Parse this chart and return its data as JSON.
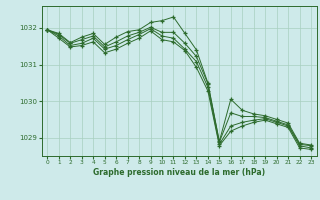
{
  "title": "Graphe pression niveau de la mer (hPa)",
  "background_color": "#ceeaea",
  "grid_color": "#a8cfc0",
  "line_color": "#2d6b2d",
  "xlim": [
    -0.5,
    23.5
  ],
  "ylim": [
    1028.5,
    1032.6
  ],
  "yticks": [
    1029,
    1030,
    1031,
    1032
  ],
  "xticks": [
    0,
    1,
    2,
    3,
    4,
    5,
    6,
    7,
    8,
    9,
    10,
    11,
    12,
    13,
    14,
    15,
    16,
    17,
    18,
    19,
    20,
    21,
    22,
    23
  ],
  "series": [
    [
      1031.95,
      1031.85,
      1031.6,
      1031.75,
      1031.85,
      1031.55,
      1031.75,
      1031.9,
      1031.95,
      1032.15,
      1032.2,
      1032.3,
      1031.85,
      1031.4,
      1030.5,
      1028.9,
      1030.05,
      1029.75,
      1029.65,
      1029.6,
      1029.5,
      1029.4,
      1028.85,
      1028.8
    ],
    [
      1031.95,
      1031.82,
      1031.58,
      1031.68,
      1031.78,
      1031.48,
      1031.62,
      1031.78,
      1031.88,
      1032.02,
      1031.88,
      1031.88,
      1031.58,
      1031.22,
      1030.48,
      1028.88,
      1029.68,
      1029.58,
      1029.58,
      1029.55,
      1029.45,
      1029.35,
      1028.82,
      1028.78
    ],
    [
      1031.95,
      1031.78,
      1031.52,
      1031.58,
      1031.72,
      1031.42,
      1031.52,
      1031.68,
      1031.82,
      1031.98,
      1031.78,
      1031.72,
      1031.42,
      1031.08,
      1030.38,
      1028.82,
      1029.32,
      1029.42,
      1029.48,
      1029.52,
      1029.42,
      1029.32,
      1028.78,
      1028.72
    ],
    [
      1031.95,
      1031.72,
      1031.48,
      1031.52,
      1031.62,
      1031.32,
      1031.42,
      1031.58,
      1031.72,
      1031.92,
      1031.68,
      1031.62,
      1031.38,
      1030.92,
      1030.28,
      1028.78,
      1029.18,
      1029.32,
      1029.42,
      1029.48,
      1029.38,
      1029.28,
      1028.72,
      1028.68
    ]
  ]
}
